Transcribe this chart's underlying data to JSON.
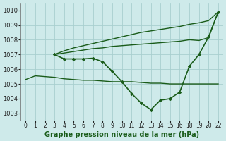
{
  "background_color": "#ceeaea",
  "grid_color": "#a8cfcf",
  "line_color": "#1a5c1a",
  "title": "Graphe pression niveau de la mer (hPa)",
  "xlabel_fontsize": 7,
  "ylim": [
    1002.5,
    1010.5
  ],
  "yticks": [
    1003,
    1004,
    1005,
    1006,
    1007,
    1008,
    1009,
    1010
  ],
  "xlabels": [
    "0",
    "1",
    "2",
    "3",
    "4",
    "5",
    "6",
    "7",
    "8",
    "9",
    "10",
    "11",
    "12",
    "13",
    "14",
    "15",
    "16",
    "18",
    "19",
    "20",
    "22"
  ],
  "series": [
    {
      "xi": [
        0,
        1,
        2,
        3,
        4,
        5,
        6,
        7,
        8,
        9,
        10,
        11,
        12,
        13,
        14,
        15,
        16,
        17,
        18,
        19,
        20
      ],
      "y": [
        1005.3,
        1005.55,
        1005.5,
        1005.45,
        1005.35,
        1005.3,
        1005.25,
        1005.25,
        1005.2,
        1005.15,
        1005.15,
        1005.15,
        1005.1,
        1005.05,
        1005.05,
        1005.0,
        1005.0,
        1005.0,
        1005.0,
        1005.0,
        1005.0
      ],
      "marker": false,
      "linewidth": 1.0
    },
    {
      "xi": [
        3,
        4,
        5,
        6,
        7,
        8,
        9,
        10,
        11,
        12,
        13,
        14,
        15,
        16,
        17,
        18,
        19,
        20
      ],
      "y": [
        1007.0,
        1006.7,
        1006.7,
        1006.7,
        1006.75,
        1006.5,
        1005.85,
        1005.15,
        1004.35,
        1003.7,
        1003.25,
        1003.9,
        1004.0,
        1004.45,
        1006.2,
        1007.0,
        1008.2,
        1009.9
      ],
      "marker": true,
      "linewidth": 1.2
    },
    {
      "xi": [
        3,
        4,
        5,
        6,
        7,
        8,
        9,
        10,
        11,
        12,
        13,
        14,
        15,
        16,
        17,
        18,
        19,
        20
      ],
      "y": [
        1007.0,
        1007.1,
        1007.2,
        1007.3,
        1007.4,
        1007.45,
        1007.55,
        1007.6,
        1007.65,
        1007.7,
        1007.75,
        1007.8,
        1007.85,
        1007.9,
        1008.0,
        1007.95,
        1008.15,
        1009.9
      ],
      "marker": false,
      "linewidth": 1.0
    },
    {
      "xi": [
        3,
        4,
        5,
        6,
        7,
        8,
        9,
        10,
        11,
        12,
        13,
        14,
        15,
        16,
        17,
        18,
        19,
        20
      ],
      "y": [
        1007.0,
        1007.25,
        1007.45,
        1007.6,
        1007.75,
        1007.9,
        1008.05,
        1008.2,
        1008.35,
        1008.5,
        1008.6,
        1008.7,
        1008.8,
        1008.9,
        1009.05,
        1009.15,
        1009.3,
        1009.9
      ],
      "marker": false,
      "linewidth": 1.0
    }
  ]
}
